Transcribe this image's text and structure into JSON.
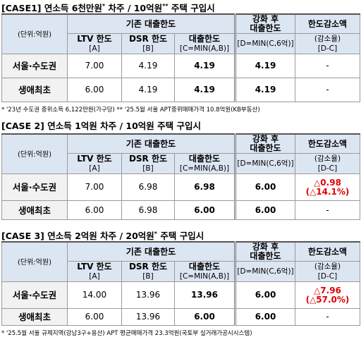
{
  "cases": [
    {
      "title": [
        "[CASE1] 연소득 6천만원",
        "*",
        " 차주 / 10억원",
        "**",
        " 주택 구입시"
      ],
      "header": {
        "unit": "(단위:억원)",
        "group": "기존 대출한도",
        "ltv": "LTV 한도",
        "ltv_sub": "[A]",
        "dsr": "DSR 한도",
        "dsr_sub": "[B]",
        "loan": "대출한도",
        "loan_sub": "[C=MIN(A,B)]",
        "after": "강화 후",
        "after2": "대출한도",
        "after_sub": "[D=MIN(C,6억)]",
        "dec": "한도감소액",
        "dec2": "(감소율)",
        "dec_sub": "[D-C]"
      },
      "rows": [
        {
          "label": "서울·수도권",
          "values": [
            "7.00",
            "4.19",
            "4.19",
            "4.19"
          ],
          "dec": [
            "-"
          ]
        },
        {
          "label": "생애최초",
          "values": [
            "6.00",
            "4.19",
            "4.19",
            "4.19"
          ],
          "dec": [
            "-"
          ]
        }
      ],
      "note": "* '23년 수도권 중위소득 6,122만원(가구당)   ** '25.5월 서울 APT중위매매가격 10.8억원(KB부동산)"
    },
    {
      "title": [
        "[CASE 2] 연소득 1억원 차주 / 10억원 주택 구입시"
      ],
      "header": {
        "unit": "(단위:억원)",
        "group": "기존 대출한도",
        "ltv": "LTV 한도",
        "ltv_sub": "[A]",
        "dsr": "DSR 한도",
        "dsr_sub": "[B]",
        "loan": "대출한도",
        "loan_sub": "[C=MIN(A,B)]",
        "after": "강화 후",
        "after2": "대출한도",
        "after_sub": "[D=MIN(C,6억)]",
        "dec": "한도감소액",
        "dec2": "(감소율)",
        "dec_sub": "[D-C]"
      },
      "rows": [
        {
          "label": "서울·수도권",
          "values": [
            "7.00",
            "6.98",
            "6.98",
            "6.00"
          ],
          "dec": [
            "△0.98",
            "(△14.1%)"
          ]
        },
        {
          "label": "생애최초",
          "values": [
            "6.00",
            "6.98",
            "6.00",
            "6.00"
          ],
          "dec": [
            "-"
          ]
        }
      ]
    },
    {
      "title": [
        "[CASE 3] 연소득 2억원 차주 / 20억원",
        "*",
        " 주택 구입시"
      ],
      "header": {
        "unit": "(단위:억원)",
        "group": "기존 대출한도",
        "ltv": "LTV 한도",
        "ltv_sub": "[A]",
        "dsr": "DSR 한도",
        "dsr_sub": "[B]",
        "loan": "대출한도",
        "loan_sub": "[C=MIN(A,B)]",
        "after": "강화 후",
        "after2": "대출한도",
        "after_sub": "[D=MIN(C,6억)]",
        "dec": "한도감소액",
        "dec2": "(감소율)",
        "dec_sub": "[D-C]"
      },
      "rows": [
        {
          "label": "서울·수도권",
          "values": [
            "14.00",
            "13.96",
            "13.96",
            "6.00"
          ],
          "dec": [
            "△7.96",
            "(△57.0%)"
          ]
        },
        {
          "label": "생애최초",
          "values": [
            "6.00",
            "13.96",
            "6.00",
            "6.00"
          ],
          "dec": [
            "-"
          ]
        }
      ],
      "note": "* '25.5월 서울 규제지역(강남3구+용산) APT 평균매매가격 23.3억원(국토부 실거래가공시시스템)"
    }
  ]
}
